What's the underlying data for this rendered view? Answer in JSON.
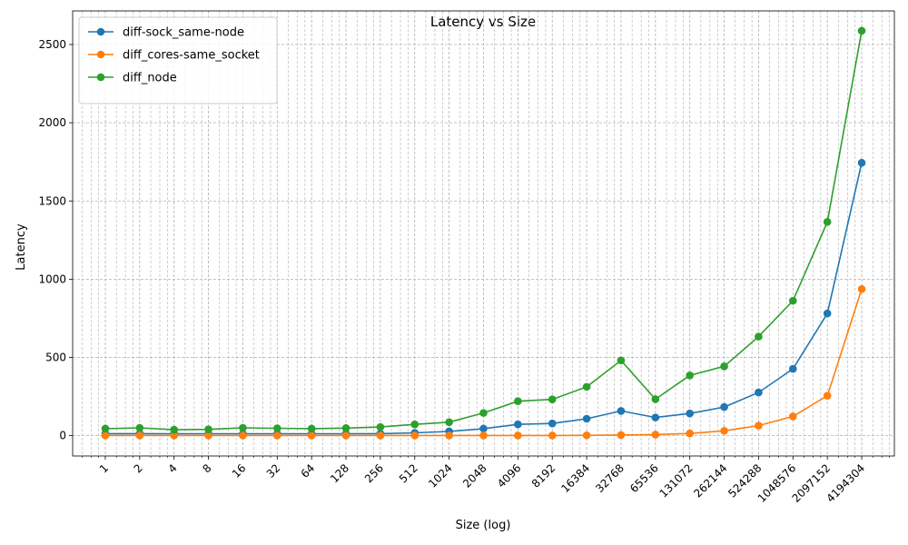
{
  "chart_data": {
    "type": "line",
    "title": "Latency vs Size",
    "xlabel": "Size (log)",
    "ylabel": "Latency",
    "xscale": "log2",
    "x": [
      1,
      2,
      4,
      8,
      16,
      32,
      64,
      128,
      256,
      512,
      1024,
      2048,
      4096,
      8192,
      16384,
      32768,
      65536,
      131072,
      262144,
      524288,
      1048576,
      2097152,
      4194304
    ],
    "xticklabels": [
      "1",
      "2",
      "4",
      "8",
      "16",
      "32",
      "64",
      "128",
      "256",
      "512",
      "1024",
      "2048",
      "4096",
      "8192",
      "16384",
      "32768",
      "65536",
      "131072",
      "262144",
      "524288",
      "1048576",
      "2097152",
      "4194304"
    ],
    "yticks": [
      0,
      500,
      1000,
      1500,
      2000,
      2500
    ],
    "ylim": [
      -130,
      2715
    ],
    "grid": true,
    "legend": "top-left",
    "series": [
      {
        "name": "diff-sock_same-node",
        "color": "#1f77b4",
        "values": [
          12,
          13,
          12,
          12,
          12,
          12,
          12,
          12,
          13,
          18,
          27,
          45,
          72,
          78,
          108,
          158,
          116,
          142,
          183,
          276,
          427,
          781,
          1744
        ]
      },
      {
        "name": "diff_cores-same_socket",
        "color": "#ff7f0e",
        "values": [
          1,
          1,
          1,
          1,
          1,
          1,
          1,
          1,
          1,
          1,
          1,
          1,
          1,
          1,
          2,
          4,
          7,
          14,
          31,
          64,
          123,
          255,
          937
        ]
      },
      {
        "name": "diff_node",
        "color": "#2ca02c",
        "values": [
          45,
          50,
          38,
          40,
          50,
          47,
          45,
          48,
          55,
          72,
          86,
          145,
          220,
          232,
          312,
          481,
          233,
          385,
          443,
          633,
          862,
          1366,
          2588
        ]
      }
    ]
  }
}
